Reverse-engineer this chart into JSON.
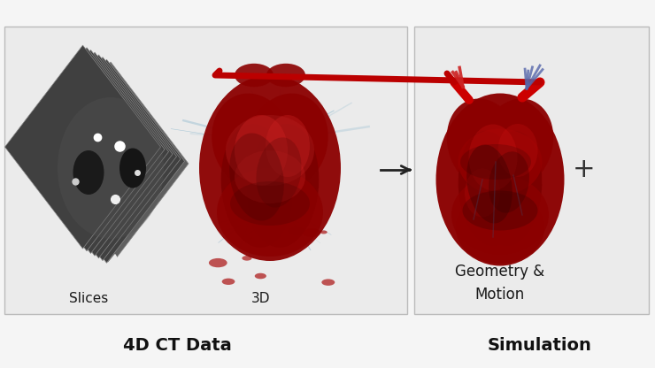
{
  "background_color": "#f5f5f5",
  "box1_bg": "#ebebeb",
  "box2_bg": "#ebebeb",
  "box_edge": "#bbbbbb",
  "label_4d_ct": "4D CT Data",
  "label_simulation": "Simulation",
  "label_slices": "Slices",
  "label_3d": "3D",
  "label_geo_motion": "Geometry &\nMotion",
  "plus_symbol": "+",
  "title_fontsize": 14,
  "label_fontsize": 11,
  "geo_motion_fontsize": 12
}
